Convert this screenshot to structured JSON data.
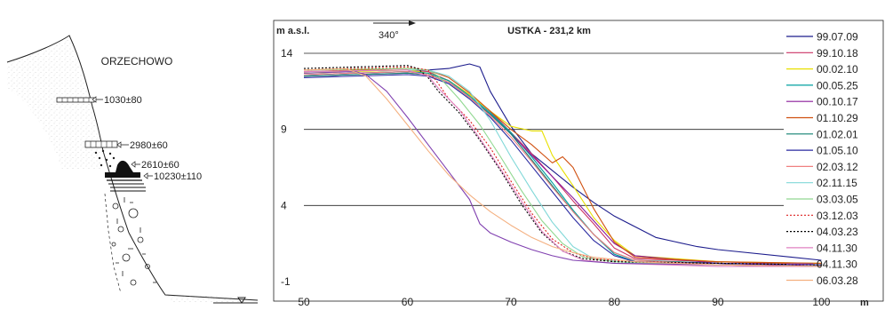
{
  "profile": {
    "site": "ORZECHOWO",
    "ages": [
      {
        "label": "1030±80"
      },
      {
        "label": "2980±60"
      },
      {
        "label": "2610±60"
      },
      {
        "label": "10230±110"
      }
    ]
  },
  "chart_data": {
    "type": "line",
    "title": "USTKA - 231,2 km",
    "ylabel": "m  a.s.l.",
    "xlabel": "m",
    "direction_label": "340°",
    "xlim": [
      50,
      104
    ],
    "ylim": [
      -1,
      14
    ],
    "x_ticks": [
      50,
      60,
      70,
      80,
      90,
      100
    ],
    "y_ticks": [
      -1,
      4,
      9,
      14
    ],
    "grid_y": [
      4,
      9,
      14
    ],
    "legend_position": "right",
    "series": [
      {
        "name": "99.07.09",
        "color": "#1c1c8c",
        "dash": "solid",
        "points": [
          [
            50,
            12.6
          ],
          [
            60,
            12.8
          ],
          [
            62,
            12.9
          ],
          [
            64,
            13
          ],
          [
            66,
            13.3
          ],
          [
            67,
            13.1
          ],
          [
            68,
            11.5
          ],
          [
            70,
            9.2
          ],
          [
            72,
            7.4
          ],
          [
            74,
            6.3
          ],
          [
            76,
            5.2
          ],
          [
            78,
            4.2
          ],
          [
            80,
            3.3
          ],
          [
            82,
            2.6
          ],
          [
            84,
            1.9
          ],
          [
            86,
            1.6
          ],
          [
            88,
            1.3
          ],
          [
            90,
            1.1
          ],
          [
            100,
            0.4
          ]
        ]
      },
      {
        "name": "99.10.18",
        "color": "#cc3366",
        "dash": "solid",
        "points": [
          [
            50,
            12.8
          ],
          [
            60,
            12.9
          ],
          [
            62,
            12.8
          ],
          [
            64,
            12.2
          ],
          [
            66,
            11.3
          ],
          [
            68,
            10.2
          ],
          [
            70,
            8.8
          ],
          [
            72,
            7.4
          ],
          [
            74,
            5.9
          ],
          [
            76,
            4.3
          ],
          [
            78,
            2.8
          ],
          [
            80,
            1.2
          ],
          [
            82,
            0.5
          ],
          [
            90,
            0.3
          ],
          [
            100,
            0.1
          ]
        ]
      },
      {
        "name": "00.02.10",
        "color": "#e8e000",
        "dash": "solid",
        "points": [
          [
            50,
            12.7
          ],
          [
            60,
            12.9
          ],
          [
            62,
            12.7
          ],
          [
            64,
            12.2
          ],
          [
            66,
            11.3
          ],
          [
            68,
            10.2
          ],
          [
            70,
            9.2
          ],
          [
            72,
            8.9
          ],
          [
            73,
            8.9
          ],
          [
            74,
            7.3
          ],
          [
            76,
            5.3
          ],
          [
            78,
            3.2
          ],
          [
            80,
            1.7
          ],
          [
            82,
            0.7
          ],
          [
            90,
            0.3
          ],
          [
            100,
            0.2
          ]
        ]
      },
      {
        "name": "00.05.25",
        "color": "#00a0a0",
        "dash": "solid",
        "points": [
          [
            50,
            12.6
          ],
          [
            60,
            12.8
          ],
          [
            62,
            12.7
          ],
          [
            64,
            12.2
          ],
          [
            66,
            11.2
          ],
          [
            68,
            10.1
          ],
          [
            70,
            8.8
          ],
          [
            72,
            7.2
          ],
          [
            74,
            5.5
          ],
          [
            76,
            3.7
          ],
          [
            78,
            2.1
          ],
          [
            80,
            0.8
          ],
          [
            82,
            0.3
          ],
          [
            90,
            0.1
          ],
          [
            100,
            0
          ]
        ]
      },
      {
        "name": "00.10.17",
        "color": "#8a1a9a",
        "dash": "solid",
        "points": [
          [
            50,
            12.5
          ],
          [
            60,
            12.7
          ],
          [
            62,
            12.6
          ],
          [
            64,
            12.1
          ],
          [
            66,
            11.1
          ],
          [
            68,
            10
          ],
          [
            70,
            8.7
          ],
          [
            72,
            7.3
          ],
          [
            74,
            5.9
          ],
          [
            76,
            4.5
          ],
          [
            78,
            3
          ],
          [
            80,
            1.5
          ],
          [
            82,
            0.7
          ],
          [
            90,
            0.2
          ],
          [
            100,
            0
          ]
        ]
      },
      {
        "name": "01.10.29",
        "color": "#d05010",
        "dash": "solid",
        "points": [
          [
            50,
            12.8
          ],
          [
            60,
            13
          ],
          [
            62,
            12.9
          ],
          [
            64,
            12.4
          ],
          [
            66,
            11.4
          ],
          [
            68,
            10.2
          ],
          [
            70,
            9
          ],
          [
            72,
            8
          ],
          [
            74,
            6.8
          ],
          [
            75,
            7.2
          ],
          [
            76,
            6.5
          ],
          [
            78,
            3.8
          ],
          [
            80,
            1.6
          ],
          [
            82,
            0.6
          ],
          [
            90,
            0.3
          ],
          [
            100,
            0.2
          ]
        ]
      },
      {
        "name": "01.02.01",
        "color": "#108070",
        "dash": "solid",
        "points": [
          [
            50,
            12.5
          ],
          [
            60,
            12.7
          ],
          [
            62,
            12.6
          ],
          [
            64,
            12.1
          ],
          [
            66,
            11.1
          ],
          [
            68,
            10
          ],
          [
            70,
            8.7
          ],
          [
            72,
            7
          ],
          [
            74,
            5.3
          ],
          [
            76,
            3.6
          ],
          [
            78,
            2.1
          ],
          [
            80,
            0.9
          ],
          [
            82,
            0.4
          ],
          [
            90,
            0.2
          ],
          [
            100,
            0.1
          ]
        ]
      },
      {
        "name": "01.05.10",
        "color": "#2a2aa0",
        "dash": "solid",
        "points": [
          [
            50,
            12.4
          ],
          [
            60,
            12.6
          ],
          [
            62,
            12.5
          ],
          [
            64,
            12
          ],
          [
            66,
            11
          ],
          [
            68,
            9.8
          ],
          [
            70,
            8.3
          ],
          [
            72,
            6.6
          ],
          [
            74,
            4.9
          ],
          [
            76,
            3.2
          ],
          [
            78,
            1.7
          ],
          [
            80,
            0.7
          ],
          [
            82,
            0.3
          ],
          [
            90,
            0.2
          ],
          [
            100,
            0.1
          ]
        ]
      },
      {
        "name": "02.03.12",
        "color": "#f08080",
        "dash": "solid",
        "points": [
          [
            50,
            12.6
          ],
          [
            60,
            12.8
          ],
          [
            62,
            12.6
          ],
          [
            64,
            12.1
          ],
          [
            66,
            11.1
          ],
          [
            68,
            9.9
          ],
          [
            70,
            8.5
          ],
          [
            72,
            6.9
          ],
          [
            74,
            5.2
          ],
          [
            76,
            3.6
          ],
          [
            78,
            2.1
          ],
          [
            80,
            0.9
          ],
          [
            82,
            0.4
          ],
          [
            90,
            0.1
          ],
          [
            100,
            0
          ]
        ]
      },
      {
        "name": "02.11.15",
        "color": "#80d8d8",
        "dash": "solid",
        "points": [
          [
            50,
            12.8
          ],
          [
            60,
            12.9
          ],
          [
            62,
            12.9
          ],
          [
            64,
            12.5
          ],
          [
            66,
            11.5
          ],
          [
            68,
            9.6
          ],
          [
            70,
            7.2
          ],
          [
            72,
            5
          ],
          [
            74,
            2.9
          ],
          [
            76,
            1.3
          ],
          [
            78,
            0.5
          ],
          [
            82,
            0.2
          ],
          [
            90,
            0.1
          ],
          [
            100,
            0
          ]
        ]
      },
      {
        "name": "03.03.05",
        "color": "#90d890",
        "dash": "solid",
        "points": [
          [
            50,
            12.9
          ],
          [
            60,
            13
          ],
          [
            62,
            12.9
          ],
          [
            63,
            12.5
          ],
          [
            65,
            11
          ],
          [
            67,
            9.3
          ],
          [
            69,
            7.2
          ],
          [
            71,
            5
          ],
          [
            73,
            3
          ],
          [
            75,
            1.5
          ],
          [
            77,
            0.6
          ],
          [
            80,
            0.3
          ],
          [
            90,
            0.1
          ],
          [
            100,
            0
          ]
        ]
      },
      {
        "name": "03.12.03",
        "color": "#dd2222",
        "dash": "dot",
        "points": [
          [
            50,
            12.9
          ],
          [
            60,
            13.1
          ],
          [
            62,
            12.9
          ],
          [
            63,
            12
          ],
          [
            64,
            11
          ],
          [
            66,
            9.6
          ],
          [
            68,
            7.8
          ],
          [
            70,
            5.6
          ],
          [
            72,
            3.5
          ],
          [
            74,
            1.8
          ],
          [
            76,
            0.9
          ],
          [
            78,
            0.5
          ],
          [
            82,
            0.3
          ],
          [
            90,
            0.2
          ],
          [
            100,
            0.1
          ]
        ]
      },
      {
        "name": "04.03.23",
        "color": "#000000",
        "dash": "dot",
        "points": [
          [
            50,
            13
          ],
          [
            60,
            13.2
          ],
          [
            61,
            13
          ],
          [
            62,
            12.4
          ],
          [
            63,
            11.5
          ],
          [
            65,
            10.1
          ],
          [
            67,
            8.3
          ],
          [
            69,
            6.3
          ],
          [
            71,
            4.1
          ],
          [
            73,
            2.2
          ],
          [
            75,
            1
          ],
          [
            77,
            0.5
          ],
          [
            80,
            0.3
          ],
          [
            90,
            0.2
          ],
          [
            100,
            0.1
          ]
        ]
      },
      {
        "name": "04.11.30",
        "color": "#e080c0",
        "dash": "solid",
        "points": [
          [
            50,
            12.8
          ],
          [
            60,
            12.9
          ],
          [
            62,
            12.5
          ],
          [
            63,
            11.7
          ],
          [
            65,
            10.3
          ],
          [
            67,
            8.4
          ],
          [
            69,
            6.4
          ],
          [
            71,
            4.3
          ],
          [
            73,
            2.3
          ],
          [
            75,
            1
          ],
          [
            77,
            0.4
          ],
          [
            80,
            0.2
          ],
          [
            90,
            0
          ],
          [
            100,
            0
          ]
        ]
      },
      {
        "name": "04.11.30",
        "color": "#8040b0",
        "dash": "solid",
        "points": [
          [
            50,
            12.7
          ],
          [
            55,
            12.8
          ],
          [
            56,
            12.6
          ],
          [
            58,
            11.5
          ],
          [
            60,
            9.8
          ],
          [
            62,
            8
          ],
          [
            64,
            6.2
          ],
          [
            66,
            4.4
          ],
          [
            67,
            2.8
          ],
          [
            68,
            2.2
          ],
          [
            70,
            1.6
          ],
          [
            72,
            1.1
          ],
          [
            74,
            0.7
          ],
          [
            76,
            0.4
          ],
          [
            80,
            0.2
          ],
          [
            90,
            0.1
          ],
          [
            100,
            0
          ]
        ]
      },
      {
        "name": "06.03.28",
        "color": "#f4b080",
        "dash": "solid",
        "points": [
          [
            50,
            12.9
          ],
          [
            54,
            13
          ],
          [
            56,
            12.5
          ],
          [
            58,
            11
          ],
          [
            60,
            9.3
          ],
          [
            62,
            7.6
          ],
          [
            64,
            6
          ],
          [
            66,
            4.7
          ],
          [
            68,
            3.6
          ],
          [
            70,
            2.7
          ],
          [
            72,
            1.9
          ],
          [
            74,
            1.3
          ],
          [
            76,
            0.9
          ],
          [
            78,
            0.6
          ],
          [
            82,
            0.3
          ],
          [
            90,
            0.1
          ],
          [
            100,
            0
          ]
        ]
      }
    ]
  }
}
